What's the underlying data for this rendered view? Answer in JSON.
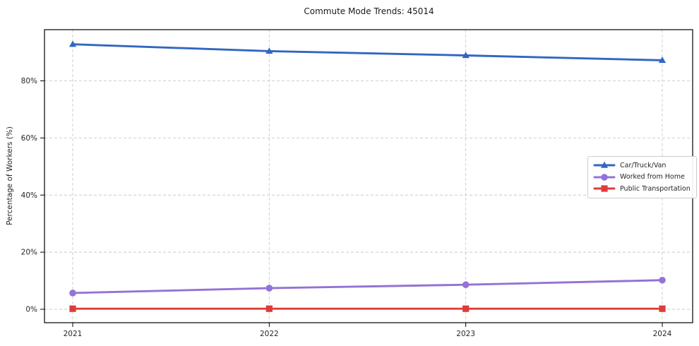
{
  "chart_data": {
    "type": "line",
    "title": "Commute Mode Trends: 45014",
    "xlabel": "",
    "ylabel": "Percentage of Workers (%)",
    "categories": [
      "2021",
      "2022",
      "2023",
      "2024"
    ],
    "series": [
      {
        "name": "Car/Truck/Van",
        "values": [
          92.8,
          90.4,
          88.9,
          87.2
        ],
        "color": "#3266c2",
        "marker": "triangle"
      },
      {
        "name": "Worked from Home",
        "values": [
          5.7,
          7.4,
          8.6,
          10.2
        ],
        "color": "#9472d6",
        "marker": "circle"
      },
      {
        "name": "Public Transportation",
        "values": [
          0.2,
          0.2,
          0.2,
          0.2
        ],
        "color": "#df3b3b",
        "marker": "square"
      }
    ],
    "yticks": [
      {
        "value": 0,
        "label": "0%"
      },
      {
        "value": 20,
        "label": "20%"
      },
      {
        "value": 40,
        "label": "40%"
      },
      {
        "value": 60,
        "label": "60%"
      },
      {
        "value": 80,
        "label": "80%"
      }
    ],
    "ylim": [
      -4.5,
      98
    ],
    "grid": true,
    "grid_style": "dashed",
    "legend_position": "center-right",
    "colors": {
      "background": "#ffffff",
      "grid": "#c9c9c9",
      "axis": "#000000",
      "text": "#262626"
    }
  }
}
